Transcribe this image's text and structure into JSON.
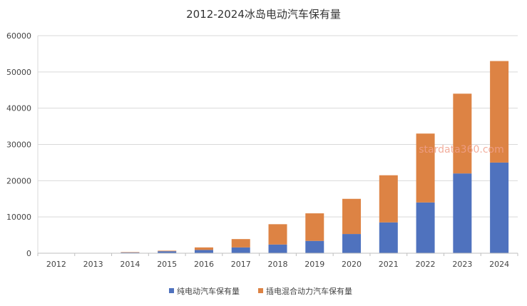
{
  "chart_data": {
    "type": "bar",
    "stacked": true,
    "title": "2012-2024冰岛电动汽车保有量",
    "xlabel": "",
    "ylabel": "",
    "categories": [
      "2012",
      "2013",
      "2014",
      "2015",
      "2016",
      "2017",
      "2018",
      "2019",
      "2020",
      "2021",
      "2022",
      "2023",
      "2024"
    ],
    "series": [
      {
        "name": "纯电动汽车保有量",
        "color": "#4f72be",
        "values": [
          20,
          50,
          200,
          550,
          900,
          1600,
          2400,
          3400,
          5300,
          8500,
          14000,
          22000,
          25000
        ]
      },
      {
        "name": "插电混合动力汽车保有量",
        "color": "#dd8344",
        "values": [
          10,
          30,
          100,
          150,
          700,
          2300,
          5600,
          7600,
          9700,
          13000,
          19000,
          22000,
          28000
        ]
      }
    ],
    "ylim": [
      0,
      60000
    ],
    "yticks": [
      0,
      10000,
      20000,
      30000,
      40000,
      50000,
      60000
    ],
    "grid": true,
    "legend_position": "bottom",
    "watermark": "stardata360.com"
  }
}
